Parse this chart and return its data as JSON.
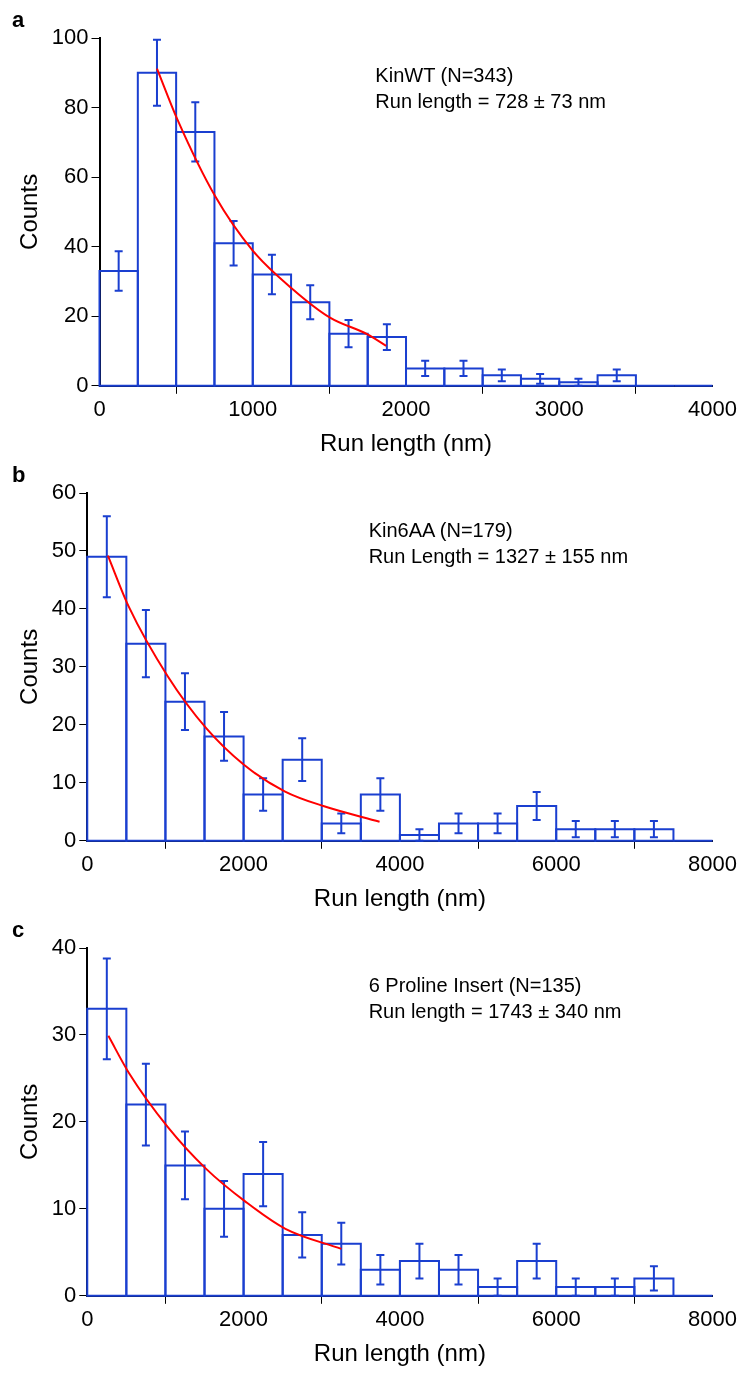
{
  "chart_data": [
    {
      "type": "histogram",
      "title": "a",
      "xlabel": "Run length (nm)",
      "ylabel": "Counts",
      "annotations": [
        "KinWT (N=343)",
        "Run length = 728 ± 73 nm"
      ],
      "bins": [
        0,
        250,
        500,
        750,
        1000,
        1250,
        1500,
        1750,
        2000,
        2250,
        2500,
        2750,
        3000,
        3250,
        3500,
        3750,
        4000
      ],
      "xlim": [
        0,
        4000
      ],
      "xticks": [
        0,
        1000,
        2000,
        3000,
        4000
      ],
      "ylim": [
        0,
        100
      ],
      "yticks": [
        0,
        20,
        40,
        60,
        80,
        100
      ],
      "color": "#1a3fd0",
      "values": [
        33,
        90,
        73,
        41,
        32,
        24,
        15,
        14,
        5,
        5,
        3,
        2,
        1,
        3,
        0,
        0
      ],
      "errors": [
        5.7,
        9.5,
        8.5,
        6.4,
        5.7,
        4.9,
        3.9,
        3.7,
        2.2,
        2.2,
        1.7,
        1.4,
        1,
        1.7,
        null,
        null
      ],
      "series": [
        {
          "type": "line",
          "color": "#ff0000",
          "x": [
            375,
            508,
            756,
            1001,
            1255,
            1504,
            1749,
            1870
          ],
          "values": [
            91.2,
            76.6,
            54.4,
            38.8,
            28,
            19.6,
            14.8,
            11.5
          ]
        }
      ]
    },
    {
      "type": "histogram",
      "title": "b",
      "xlabel": "Run length (nm)",
      "ylabel": "Counts",
      "annotations": [
        "Kin6AA (N=179)",
        "Run Length = 1327 ± 155 nm"
      ],
      "bins": [
        0,
        500,
        1000,
        1500,
        2000,
        2500,
        3000,
        3500,
        4000,
        4500,
        5000,
        5500,
        6000,
        6500,
        7000,
        7500,
        8000
      ],
      "xlim": [
        0,
        8000
      ],
      "xticks": [
        0,
        2000,
        4000,
        6000,
        8000
      ],
      "ylim": [
        0,
        60
      ],
      "yticks": [
        0,
        10,
        20,
        30,
        40,
        50,
        60
      ],
      "color": "#1a3fd0",
      "values": [
        49,
        34,
        24,
        18,
        8,
        14,
        3,
        8,
        1,
        3,
        3,
        6,
        2,
        2,
        2,
        0
      ],
      "errors": [
        7,
        5.8,
        4.9,
        4.2,
        2.8,
        3.7,
        1.7,
        2.8,
        1,
        1.7,
        1.7,
        2.4,
        1.4,
        1.4,
        1.4,
        null
      ],
      "series": [
        {
          "type": "line",
          "color": "#ff0000",
          "x": [
            264,
            534,
            1029,
            1524,
            2025,
            2531,
            3020,
            3740
          ],
          "values": [
            49.2,
            40.3,
            28.4,
            19.4,
            12.9,
            8.5,
            6,
            3.3
          ]
        }
      ]
    },
    {
      "type": "histogram",
      "title": "c",
      "xlabel": "Run length (nm)",
      "ylabel": "Counts",
      "annotations": [
        "6 Proline Insert (N=135)",
        "Run length = 1743 ± 340 nm"
      ],
      "bins": [
        0,
        500,
        1000,
        1500,
        2000,
        2500,
        3000,
        3500,
        4000,
        4500,
        5000,
        5500,
        6000,
        6500,
        7000,
        7500,
        8000
      ],
      "xlim": [
        0,
        8000
      ],
      "xticks": [
        0,
        2000,
        4000,
        6000,
        8000
      ],
      "ylim": [
        0,
        40
      ],
      "yticks": [
        0,
        10,
        20,
        30,
        40
      ],
      "color": "#1a3fd0",
      "values": [
        33,
        22,
        15,
        10,
        14,
        7,
        6,
        3,
        4,
        3,
        1,
        4,
        1,
        1,
        2,
        0
      ],
      "errors": [
        5.8,
        4.7,
        3.9,
        3.2,
        3.7,
        2.6,
        2.4,
        1.7,
        2,
        1.7,
        1,
        2,
        1,
        1,
        1.4,
        null
      ],
      "series": [
        {
          "type": "line",
          "color": "#ff0000",
          "x": [
            270,
            535,
            1031,
            1521,
            2028,
            2535,
            3251
          ],
          "values": [
            29.9,
            25.6,
            19.4,
            14.6,
            10.8,
            7.7,
            5.4
          ]
        }
      ]
    }
  ]
}
